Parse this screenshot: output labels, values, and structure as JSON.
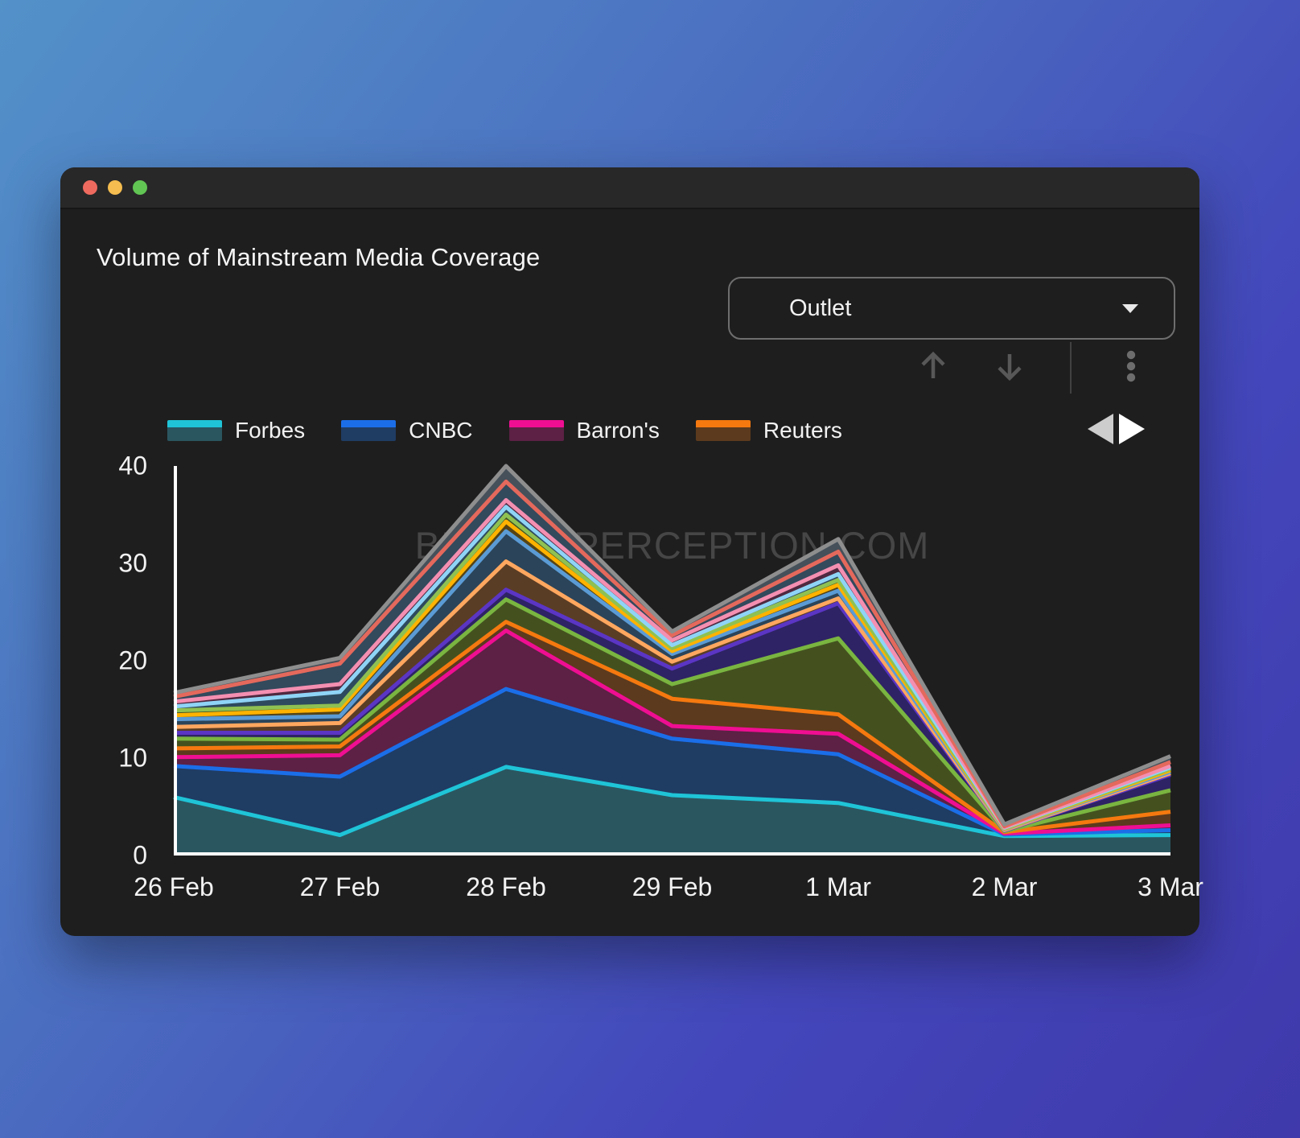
{
  "window": {
    "controls": [
      {
        "name": "close",
        "color": "#ee6a5f"
      },
      {
        "name": "minimize",
        "color": "#f5bd4f"
      },
      {
        "name": "zoom",
        "color": "#61c554"
      }
    ]
  },
  "header": {
    "title": "Volume of Mainstream Media Coverage",
    "dropdown": {
      "value": "Outlet"
    }
  },
  "toolbar": {
    "icons": [
      "arrow-up",
      "arrow-down",
      "kebab-menu"
    ],
    "icon_color": "#585858"
  },
  "legend_pager": {
    "left_arrow_color": "#cdcdcd",
    "right_arrow_color": "#ffffff"
  },
  "watermark": "BITCOINPERCEPTION.COM",
  "chart_data": {
    "type": "area",
    "stacked": true,
    "title": "Volume of Mainstream Media Coverage",
    "categories": [
      "26 Feb",
      "27 Feb",
      "28 Feb",
      "29 Feb",
      "1 Mar",
      "2 Mar",
      "3 Mar"
    ],
    "xlabel": "",
    "ylabel": "",
    "ylim": [
      0,
      40
    ],
    "y_ticks": [
      0,
      10,
      20,
      30,
      40
    ],
    "grid": false,
    "legend_position": "top",
    "series": [
      {
        "id": "series-1",
        "label": "Forbes",
        "in_legend": true,
        "line_color": "#1fc4d7",
        "fill_color": "#2a5660",
        "values": [
          6.0,
          2.1,
          9.1,
          6.2,
          5.4,
          2.0,
          2.1
        ]
      },
      {
        "id": "series-2",
        "label": "CNBC",
        "in_legend": true,
        "line_color": "#1b6ee8",
        "fill_color": "#1f3c63",
        "values": [
          3.2,
          6.0,
          8.0,
          5.8,
          5.0,
          0.15,
          0.5
        ]
      },
      {
        "id": "series-3",
        "label": "Barron's",
        "in_legend": true,
        "line_color": "#ef0e92",
        "fill_color": "#5c2145",
        "values": [
          0.9,
          2.2,
          6.0,
          1.3,
          2.1,
          0.1,
          0.5
        ]
      },
      {
        "id": "series-4",
        "label": "Reuters",
        "in_legend": true,
        "line_color": "#f5790f",
        "fill_color": "#5c3a1d",
        "values": [
          0.9,
          0.9,
          0.9,
          2.8,
          2.0,
          0.15,
          1.4
        ]
      },
      {
        "id": "series-5",
        "label": "",
        "in_legend": false,
        "line_color": "#79b540",
        "fill_color": "#44511f",
        "values": [
          1.0,
          0.7,
          2.3,
          1.5,
          7.8,
          0.1,
          2.2
        ]
      },
      {
        "id": "series-6",
        "label": "",
        "in_legend": false,
        "line_color": "#5b35c4",
        "fill_color": "#2e2364",
        "values": [
          0.6,
          0.7,
          1.0,
          1.6,
          3.6,
          0.05,
          1.6
        ]
      },
      {
        "id": "series-7",
        "label": "",
        "in_legend": false,
        "line_color": "#ffa75f",
        "fill_color": "#5a3d25",
        "values": [
          0.6,
          1.0,
          2.9,
          0.7,
          0.5,
          0.05,
          0.15
        ]
      },
      {
        "id": "series-8",
        "label": "",
        "in_legend": false,
        "line_color": "#5b9bd5",
        "fill_color": "#2b4459",
        "values": [
          0.8,
          0.7,
          3.1,
          0.8,
          0.8,
          0.1,
          0.15
        ]
      },
      {
        "id": "series-9",
        "label": "",
        "in_legend": false,
        "line_color": "#ffb300",
        "fill_color": "#554416",
        "values": [
          0.4,
          0.7,
          1.0,
          0.3,
          0.6,
          0.05,
          0.15
        ]
      },
      {
        "id": "series-10",
        "label": "",
        "in_legend": false,
        "line_color": "#8fc152",
        "fill_color": "#405226",
        "values": [
          0.5,
          0.4,
          0.7,
          0.3,
          0.5,
          0.05,
          0.15
        ]
      },
      {
        "id": "series-11",
        "label": "",
        "in_legend": false,
        "line_color": "#8fd4f7",
        "fill_color": "#2e4a5e",
        "values": [
          0.4,
          1.4,
          0.8,
          0.3,
          0.6,
          0.05,
          0.15
        ]
      },
      {
        "id": "series-12",
        "label": "",
        "in_legend": false,
        "line_color": "#f48fb1",
        "fill_color": "#4f2940",
        "values": [
          0.5,
          0.8,
          0.7,
          0.5,
          0.9,
          0.05,
          0.15
        ]
      },
      {
        "id": "series-13",
        "label": "",
        "in_legend": false,
        "line_color": "#e4695c",
        "fill_color": "#33495c",
        "values": [
          0.5,
          2.1,
          1.9,
          0.5,
          1.4,
          0.1,
          0.4
        ]
      },
      {
        "id": "series-14",
        "label": "",
        "in_legend": false,
        "line_color": "#8e8e8e",
        "fill_color": "#45505a",
        "values": [
          0.4,
          0.6,
          1.6,
          0.4,
          1.3,
          0.2,
          0.6
        ]
      }
    ]
  }
}
